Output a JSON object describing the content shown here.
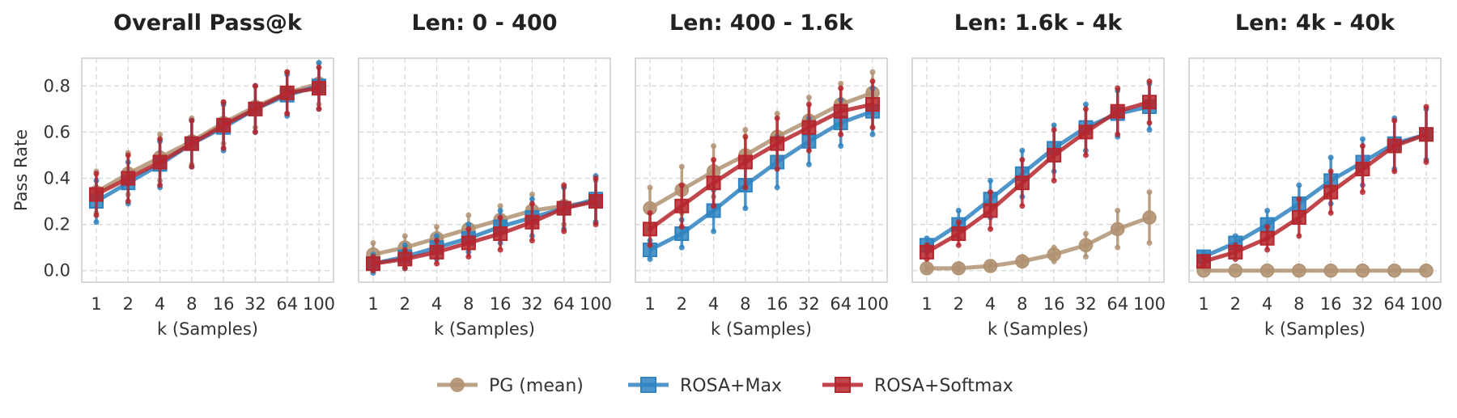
{
  "chart_data": [
    {
      "type": "line",
      "title": "Overall Pass@k",
      "xlabel": "k (Samples)",
      "ylabel": "Pass Rate",
      "categories": [
        "1",
        "2",
        "4",
        "8",
        "16",
        "32",
        "64",
        "100"
      ],
      "ylim": [
        -0.05,
        0.92
      ],
      "yticks": [
        "0.0",
        "0.2",
        "0.4",
        "0.6",
        "0.8"
      ],
      "grid": true,
      "series": [
        {
          "name": "PG (mean)",
          "marker": "circle",
          "values": [
            0.34,
            0.42,
            0.49,
            0.56,
            0.64,
            0.71,
            0.77,
            0.81
          ],
          "err": [
            0.09,
            0.09,
            0.1,
            0.1,
            0.09,
            0.09,
            0.09,
            0.09
          ]
        },
        {
          "name": "ROSA+Max",
          "marker": "square",
          "values": [
            0.3,
            0.38,
            0.46,
            0.55,
            0.62,
            0.7,
            0.76,
            0.8
          ],
          "err": [
            0.09,
            0.09,
            0.1,
            0.1,
            0.1,
            0.1,
            0.09,
            0.1
          ]
        },
        {
          "name": "ROSA+Softmax",
          "marker": "square",
          "values": [
            0.33,
            0.4,
            0.47,
            0.55,
            0.63,
            0.7,
            0.77,
            0.79
          ],
          "err": [
            0.09,
            0.1,
            0.1,
            0.1,
            0.1,
            0.1,
            0.09,
            0.09
          ]
        }
      ]
    },
    {
      "type": "line",
      "title": "Len: 0 - 400",
      "xlabel": "k (Samples)",
      "categories": [
        "1",
        "2",
        "4",
        "8",
        "16",
        "32",
        "64",
        "100"
      ],
      "ylim": [
        -0.05,
        0.92
      ],
      "grid": true,
      "series": [
        {
          "name": "PG (mean)",
          "marker": "circle",
          "values": [
            0.07,
            0.1,
            0.14,
            0.18,
            0.22,
            0.26,
            0.28,
            0.3
          ],
          "err": [
            0.05,
            0.05,
            0.05,
            0.06,
            0.06,
            0.07,
            0.08,
            0.09
          ]
        },
        {
          "name": "ROSA+Max",
          "marker": "square",
          "values": [
            0.03,
            0.06,
            0.1,
            0.14,
            0.19,
            0.23,
            0.27,
            0.31
          ],
          "err": [
            0.04,
            0.05,
            0.05,
            0.06,
            0.07,
            0.08,
            0.09,
            0.1
          ]
        },
        {
          "name": "ROSA+Softmax",
          "marker": "square",
          "values": [
            0.03,
            0.05,
            0.08,
            0.12,
            0.16,
            0.21,
            0.27,
            0.3
          ],
          "err": [
            0.03,
            0.04,
            0.05,
            0.06,
            0.07,
            0.08,
            0.1,
            0.1
          ]
        }
      ]
    },
    {
      "type": "line",
      "title": "Len: 400 - 1.6k",
      "xlabel": "k (Samples)",
      "categories": [
        "1",
        "2",
        "4",
        "8",
        "16",
        "32",
        "64",
        "100"
      ],
      "ylim": [
        -0.05,
        0.92
      ],
      "grid": true,
      "series": [
        {
          "name": "PG (mean)",
          "marker": "circle",
          "values": [
            0.27,
            0.35,
            0.43,
            0.5,
            0.58,
            0.65,
            0.72,
            0.77
          ],
          "err": [
            0.09,
            0.1,
            0.11,
            0.11,
            0.1,
            0.1,
            0.09,
            0.09
          ]
        },
        {
          "name": "ROSA+Max",
          "marker": "square",
          "values": [
            0.09,
            0.16,
            0.26,
            0.37,
            0.47,
            0.56,
            0.64,
            0.69
          ],
          "err": [
            0.04,
            0.06,
            0.09,
            0.1,
            0.11,
            0.1,
            0.1,
            0.1
          ]
        },
        {
          "name": "ROSA+Softmax",
          "marker": "square",
          "values": [
            0.18,
            0.28,
            0.38,
            0.47,
            0.55,
            0.62,
            0.69,
            0.72
          ],
          "err": [
            0.07,
            0.09,
            0.1,
            0.11,
            0.11,
            0.1,
            0.1,
            0.1
          ]
        }
      ]
    },
    {
      "type": "line",
      "title": "Len: 1.6k - 4k",
      "xlabel": "k (Samples)",
      "categories": [
        "1",
        "2",
        "4",
        "8",
        "16",
        "32",
        "64",
        "100"
      ],
      "ylim": [
        -0.05,
        0.92
      ],
      "grid": true,
      "series": [
        {
          "name": "PG (mean)",
          "marker": "circle",
          "values": [
            0.01,
            0.01,
            0.02,
            0.04,
            0.07,
            0.11,
            0.18,
            0.23
          ],
          "err": [
            0.01,
            0.01,
            0.01,
            0.02,
            0.03,
            0.05,
            0.08,
            0.11
          ]
        },
        {
          "name": "ROSA+Max",
          "marker": "square",
          "values": [
            0.11,
            0.2,
            0.31,
            0.42,
            0.53,
            0.62,
            0.68,
            0.71
          ],
          "err": [
            0.03,
            0.06,
            0.08,
            0.1,
            0.1,
            0.1,
            0.1,
            0.1
          ]
        },
        {
          "name": "ROSA+Softmax",
          "marker": "square",
          "values": [
            0.08,
            0.16,
            0.26,
            0.38,
            0.5,
            0.6,
            0.69,
            0.73
          ],
          "err": [
            0.03,
            0.05,
            0.08,
            0.1,
            0.11,
            0.1,
            0.1,
            0.09
          ]
        }
      ]
    },
    {
      "type": "line",
      "title": "Len: 4k - 40k",
      "xlabel": "k (Samples)",
      "categories": [
        "1",
        "2",
        "4",
        "8",
        "16",
        "32",
        "64",
        "100"
      ],
      "ylim": [
        -0.05,
        0.92
      ],
      "grid": true,
      "series": [
        {
          "name": "PG (mean)",
          "marker": "circle",
          "values": [
            0.0,
            0.0,
            0.0,
            0.0,
            0.0,
            0.0,
            0.0,
            0.0
          ],
          "err": [
            0.0,
            0.0,
            0.0,
            0.0,
            0.0,
            0.0,
            0.0,
            0.0
          ]
        },
        {
          "name": "ROSA+Max",
          "marker": "square",
          "values": [
            0.06,
            0.12,
            0.2,
            0.29,
            0.39,
            0.47,
            0.55,
            0.59
          ],
          "err": [
            0.02,
            0.03,
            0.06,
            0.08,
            0.1,
            0.1,
            0.11,
            0.11
          ]
        },
        {
          "name": "ROSA+Softmax",
          "marker": "square",
          "values": [
            0.04,
            0.08,
            0.14,
            0.23,
            0.34,
            0.44,
            0.54,
            0.59
          ],
          "err": [
            0.02,
            0.03,
            0.05,
            0.08,
            0.09,
            0.1,
            0.11,
            0.12
          ]
        }
      ]
    }
  ],
  "legend": {
    "placement": "bottom-center",
    "entries": [
      {
        "label": "PG (mean)",
        "marker": "circle"
      },
      {
        "label": "ROSA+Max",
        "marker": "square"
      },
      {
        "label": "ROSA+Softmax",
        "marker": "square"
      }
    ]
  },
  "colors": {
    "PG (mean)": "#b09272",
    "ROSA+Max": "#2f83c0",
    "ROSA+Softmax": "#b5262d",
    "grid": "#d6d6d6",
    "frame": "#cccccc"
  }
}
